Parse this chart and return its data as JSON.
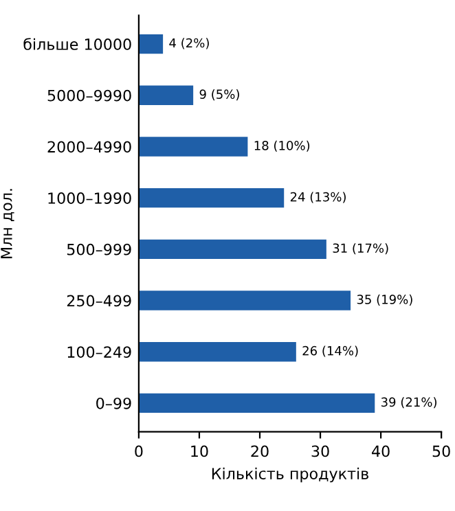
{
  "chart_data": {
    "type": "bar",
    "orientation": "horizontal",
    "categories": [
      "більше 10000",
      "5000–9990",
      "2000–4990",
      "1000–1990",
      "500–999",
      "250–499",
      "100–249",
      "0–99"
    ],
    "values": [
      4,
      9,
      18,
      24,
      31,
      35,
      26,
      39
    ],
    "value_labels": [
      "4 (2%)",
      "9 (5%)",
      "18 (10%)",
      "24 (13%)",
      "31 (17%)",
      "35 (19%)",
      "26 (14%)",
      "39 (21%)"
    ],
    "color": "#1f5fa8",
    "xlim": [
      0,
      50
    ],
    "xticks": [
      0,
      10,
      20,
      30,
      40,
      50
    ],
    "xlabel": "Кількість продуктів",
    "ylabel": "Млн дол.",
    "grid": false
  }
}
